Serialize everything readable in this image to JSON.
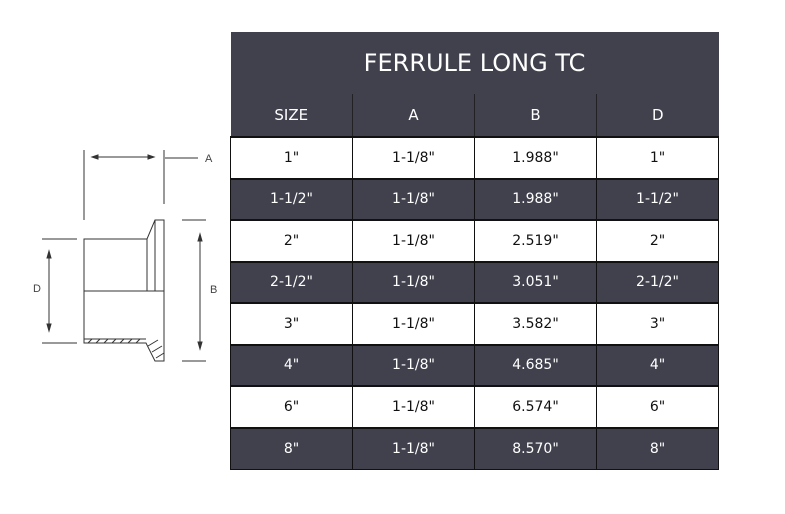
{
  "diagram": {
    "labels": {
      "a": "A",
      "b": "B",
      "d": "D"
    }
  },
  "table": {
    "title": "FERRULE LONG TC",
    "headers": [
      "SIZE",
      "A",
      "B",
      "D"
    ],
    "rows": [
      [
        "1\"",
        "1-1/8\"",
        "1.988\"",
        "1\""
      ],
      [
        "1-1/2\"",
        "1-1/8\"",
        "1.988\"",
        "1-1/2\""
      ],
      [
        "2\"",
        "1-1/8\"",
        "2.519\"",
        "2\""
      ],
      [
        "2-1/2\"",
        "1-1/8\"",
        "3.051\"",
        "2-1/2\""
      ],
      [
        "3\"",
        "1-1/8\"",
        "3.582\"",
        "3\""
      ],
      [
        "4\"",
        "1-1/8\"",
        "4.685\"",
        "4\""
      ],
      [
        "6\"",
        "1-1/8\"",
        "6.574\"",
        "6\""
      ],
      [
        "8\"",
        "1-1/8\"",
        "8.570\"",
        "8\""
      ]
    ],
    "colors": {
      "header_bg": "#40414d",
      "light_row": "#ffffff",
      "dark_row": "#40414d"
    }
  }
}
